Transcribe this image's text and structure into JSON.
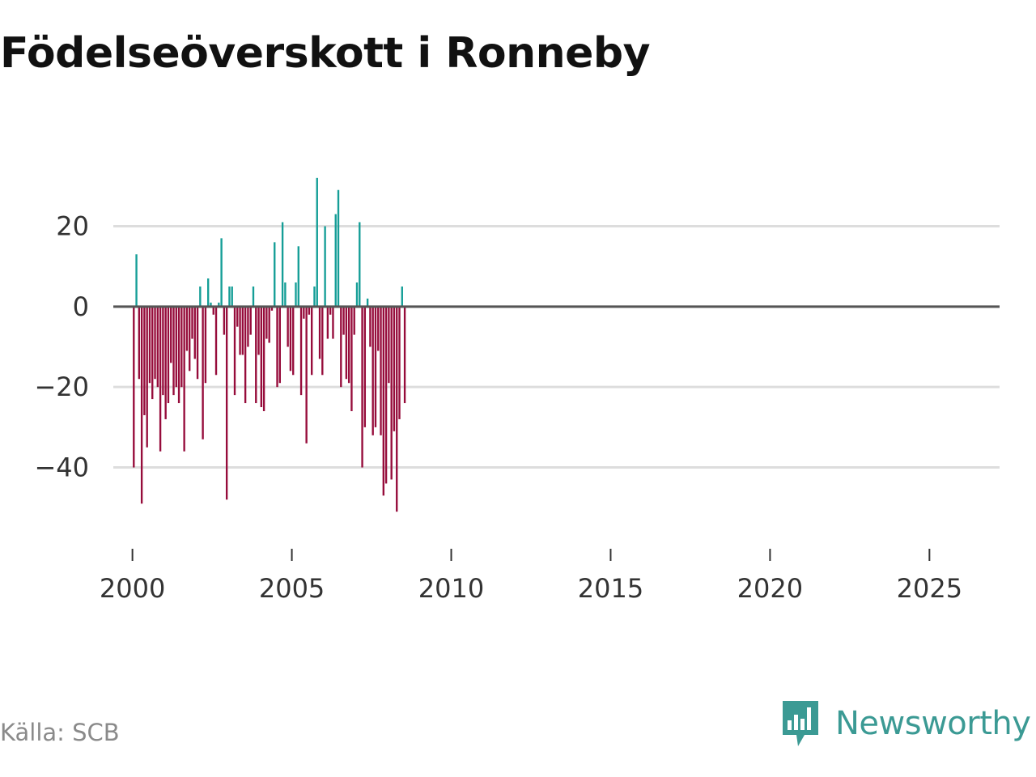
{
  "title": "Födelseöverskott i Ronneby",
  "source": "Källa: SCB",
  "brand": {
    "name": "Newsworthy",
    "logo_icon": "newsworthy-logo-icon"
  },
  "colors": {
    "positive": "#159e97",
    "negative": "#960c3b",
    "grid": "#dddddd",
    "zero": "#555555"
  },
  "chart_data": {
    "type": "bar",
    "title": "Födelseöverskott i Ronneby",
    "xlabel": "",
    "ylabel": "",
    "frequency": "monthly",
    "start": "2000-01",
    "ylim": [
      -57,
      37
    ],
    "xlim": [
      1999.4,
      2027.2
    ],
    "yticks": [
      20,
      0,
      -20,
      -40
    ],
    "ytick_labels": [
      "20",
      "0",
      "−20",
      "−40"
    ],
    "xticks": [
      2000,
      2005,
      2010,
      2015,
      2020,
      2025
    ],
    "xtick_labels": [
      "2000",
      "2005",
      "2010",
      "2015",
      "2020",
      "2025"
    ],
    "grid": true,
    "values": [
      -40,
      13,
      -18,
      -49,
      -27,
      -35,
      -19,
      -23,
      -18,
      -20,
      -36,
      -22,
      -28,
      -24,
      -14,
      -22,
      -20,
      -24,
      -20,
      -36,
      -11,
      -16,
      -8,
      -13,
      -18,
      5,
      -33,
      -19,
      7,
      1,
      -2,
      -17,
      1,
      17,
      -7,
      -48,
      5,
      5,
      -22,
      -5,
      -12,
      -12,
      -24,
      -10,
      -7,
      5,
      -24,
      -12,
      -25,
      -26,
      -8,
      -9,
      -1,
      16,
      -20,
      -19,
      21,
      6,
      -10,
      -16,
      -17,
      6,
      15,
      -22,
      -3,
      -34,
      -2,
      -17,
      5,
      32,
      -13,
      -17,
      20,
      -8,
      -2,
      -8,
      23,
      29,
      -20,
      -7,
      -18,
      -19,
      -26,
      -7,
      6,
      21,
      -40,
      -30,
      2,
      -10,
      -32,
      -30,
      -11,
      -32,
      -47,
      -44,
      -19,
      -43,
      -31,
      -51,
      -28,
      5,
      -24
    ]
  }
}
